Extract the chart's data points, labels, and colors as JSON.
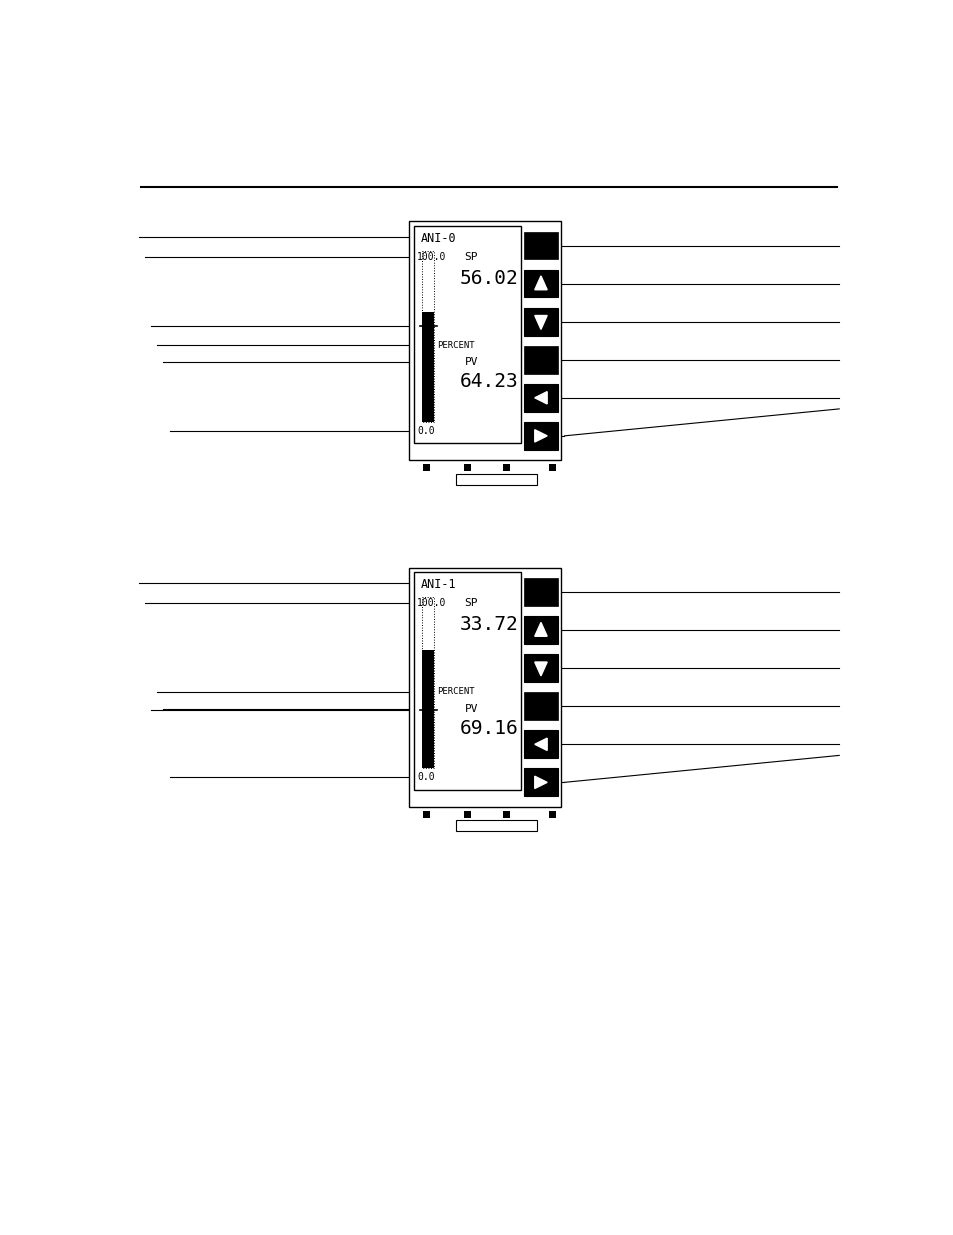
{
  "bg_color": "#ffffff",
  "line_color": "#000000",
  "panel1": {
    "title": "ANI-0",
    "scale_max": "100.0",
    "scale_min": "0.0",
    "sp_label": "SP",
    "sp_value": "56.02",
    "units": "PERCENT",
    "pv_label": "PV",
    "pv_value": "64.23",
    "bar_fill_pct": 0.64,
    "sp_pct": 0.56
  },
  "panel2": {
    "title": "ANI-1",
    "scale_max": "100.0",
    "scale_min": "0.0",
    "sp_label": "SP",
    "sp_value": "33.72",
    "units": "PERCENT",
    "pv_label": "PV",
    "pv_value": "69.16",
    "bar_fill_pct": 0.69,
    "sp_pct": 0.34
  }
}
